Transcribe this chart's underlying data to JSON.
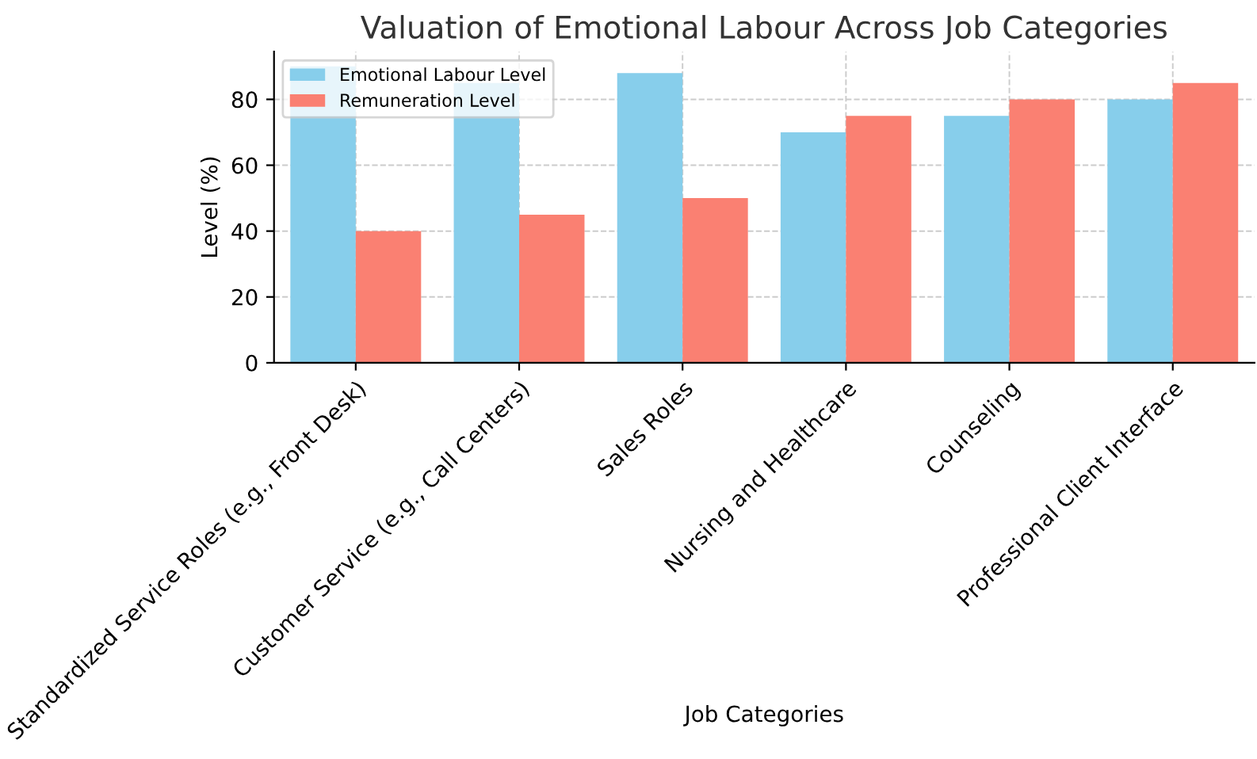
{
  "chart_data": {
    "type": "bar",
    "title": "Valuation of Emotional Labour Across Job Categories",
    "xlabel": "Job Categories",
    "ylabel": "Level (%)",
    "categories": [
      "Standardized Service Roles (e.g., Front Desk)",
      "Customer Service (e.g., Call Centers)",
      "Sales Roles",
      "Nursing and Healthcare",
      "Counseling",
      "Professional Client Interface"
    ],
    "series": [
      {
        "name": "Emotional Labour Level",
        "color": "#87ceeb",
        "values": [
          90,
          85,
          88,
          70,
          75,
          80
        ]
      },
      {
        "name": "Remuneration Level",
        "color": "#fa8072",
        "values": [
          40,
          45,
          50,
          75,
          80,
          85
        ]
      }
    ],
    "ylim": [
      0,
      94.5
    ],
    "yticks": [
      0,
      20,
      40,
      60,
      80
    ],
    "grid": true,
    "legend": "top left"
  }
}
